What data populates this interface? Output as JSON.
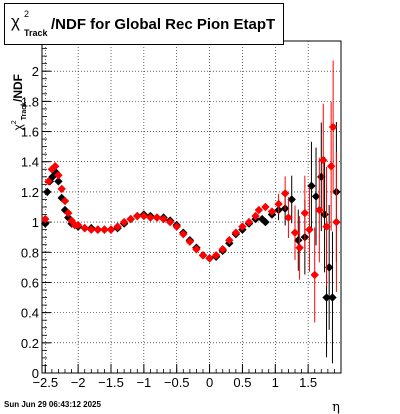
{
  "title": {
    "symbol": "χ",
    "superscript": "2",
    "subscript": "Track",
    "text": "/NDF for Global Rec Pion EtapT"
  },
  "footer": {
    "timestamp": "Sun Jun 29 06:43:12 2025"
  },
  "colors": {
    "series_black": "#000000",
    "series_red": "#ff0000"
  },
  "chart_data": {
    "type": "scatter",
    "title": "χ²Track/NDF for Global Rec Pion EtapT",
    "xlabel": "η",
    "ylabel": "χ²Track/NDF",
    "xlim": [
      -2.55,
      2.0
    ],
    "ylim": [
      0,
      2.2
    ],
    "grid": true,
    "x_ticks": [
      -2.5,
      -2,
      -1.5,
      -1,
      -0.5,
      0,
      0.5,
      1,
      1.5
    ],
    "x_tick_labels": [
      "−2.5",
      "−2",
      "−1.5",
      "−1",
      "−0.5",
      "0",
      "0.5",
      "1",
      "1.5"
    ],
    "y_ticks": [
      0,
      0.2,
      0.4,
      0.6,
      0.8,
      1,
      1.2,
      1.4,
      1.6,
      1.8,
      2
    ],
    "y_tick_labels": [
      "0",
      "0.2",
      "0.4",
      "0.6",
      "0.8",
      "1",
      "1.2",
      "1.4",
      "1.6",
      "1.8",
      "2"
    ],
    "series": [
      {
        "color": "black",
        "points": [
          [
            -2.5,
            0.99
          ],
          [
            -2.47,
            1.2
          ],
          [
            -2.43,
            1.27
          ],
          [
            -2.39,
            1.3
          ],
          [
            -2.34,
            1.33
          ],
          [
            -2.3,
            1.27
          ],
          [
            -2.25,
            1.16
          ],
          [
            -2.2,
            1.08
          ],
          [
            -2.15,
            1.03
          ],
          [
            -2.1,
            0.99
          ],
          [
            -2.05,
            0.98
          ],
          [
            -2.0,
            0.97
          ],
          [
            -1.9,
            0.96
          ],
          [
            -1.8,
            0.96
          ],
          [
            -1.7,
            0.95
          ],
          [
            -1.6,
            0.95
          ],
          [
            -1.5,
            0.95
          ],
          [
            -1.4,
            0.96
          ],
          [
            -1.3,
            0.99
          ],
          [
            -1.2,
            1.02
          ],
          [
            -1.1,
            1.04
          ],
          [
            -1.0,
            1.05
          ],
          [
            -0.9,
            1.04
          ],
          [
            -0.8,
            1.03
          ],
          [
            -0.7,
            1.03
          ],
          [
            -0.6,
            1.01
          ],
          [
            -0.5,
            0.98
          ],
          [
            -0.4,
            0.93
          ],
          [
            -0.3,
            0.88
          ],
          [
            -0.2,
            0.83
          ],
          [
            -0.1,
            0.78
          ],
          [
            0.0,
            0.76
          ],
          [
            0.1,
            0.77
          ],
          [
            0.2,
            0.81
          ],
          [
            0.3,
            0.86
          ],
          [
            0.4,
            0.92
          ],
          [
            0.5,
            0.95
          ],
          [
            0.6,
            0.99
          ],
          [
            0.7,
            1.02
          ],
          [
            0.8,
            1.02
          ],
          [
            0.85,
            1.0
          ],
          [
            0.95,
            1.05
          ],
          [
            1.05,
            1.08
          ],
          [
            1.15,
            1.09
          ],
          [
            1.25,
            1.15
          ],
          [
            1.35,
            0.88
          ],
          [
            1.45,
            0.9
          ],
          [
            1.55,
            1.24
          ],
          [
            1.62,
            1.17
          ],
          [
            1.7,
            1.3
          ],
          [
            1.75,
            1.05
          ],
          [
            1.78,
            0.5
          ],
          [
            1.82,
            0.7
          ],
          [
            1.87,
            0.5
          ],
          [
            1.93,
            1.2
          ]
        ]
      },
      {
        "color": "red",
        "points": [
          [
            -2.5,
            1.02
          ],
          [
            -2.45,
            1.27
          ],
          [
            -2.4,
            1.35
          ],
          [
            -2.35,
            1.37
          ],
          [
            -2.3,
            1.31
          ],
          [
            -2.25,
            1.22
          ],
          [
            -2.2,
            1.14
          ],
          [
            -2.15,
            1.06
          ],
          [
            -2.1,
            1.01
          ],
          [
            -2.05,
            0.98
          ],
          [
            -2.0,
            0.98
          ],
          [
            -1.9,
            0.96
          ],
          [
            -1.8,
            0.95
          ],
          [
            -1.7,
            0.95
          ],
          [
            -1.6,
            0.95
          ],
          [
            -1.5,
            0.95
          ],
          [
            -1.4,
            0.97
          ],
          [
            -1.3,
            1.0
          ],
          [
            -1.2,
            1.02
          ],
          [
            -1.1,
            1.04
          ],
          [
            -1.0,
            1.04
          ],
          [
            -0.9,
            1.03
          ],
          [
            -0.8,
            1.03
          ],
          [
            -0.7,
            1.02
          ],
          [
            -0.6,
            1.0
          ],
          [
            -0.5,
            0.97
          ],
          [
            -0.4,
            0.92
          ],
          [
            -0.3,
            0.87
          ],
          [
            -0.2,
            0.82
          ],
          [
            -0.1,
            0.78
          ],
          [
            0.0,
            0.76
          ],
          [
            0.1,
            0.78
          ],
          [
            0.2,
            0.82
          ],
          [
            0.3,
            0.88
          ],
          [
            0.4,
            0.93
          ],
          [
            0.5,
            0.97
          ],
          [
            0.6,
            1.0
          ],
          [
            0.7,
            1.04
          ],
          [
            0.75,
            1.08
          ],
          [
            0.85,
            1.1
          ],
          [
            0.95,
            1.07
          ],
          [
            1.05,
            1.12
          ],
          [
            1.15,
            1.19
          ],
          [
            1.2,
            1.03
          ],
          [
            1.3,
            0.93
          ],
          [
            1.37,
            0.83
          ],
          [
            1.45,
            1.06
          ],
          [
            1.52,
            0.95
          ],
          [
            1.6,
            0.65
          ],
          [
            1.67,
            1.08
          ],
          [
            1.73,
            1.41
          ],
          [
            1.78,
            0.97
          ],
          [
            1.85,
            1.37
          ],
          [
            1.88,
            1.63
          ],
          [
            1.93,
            1.0
          ]
        ]
      }
    ]
  }
}
